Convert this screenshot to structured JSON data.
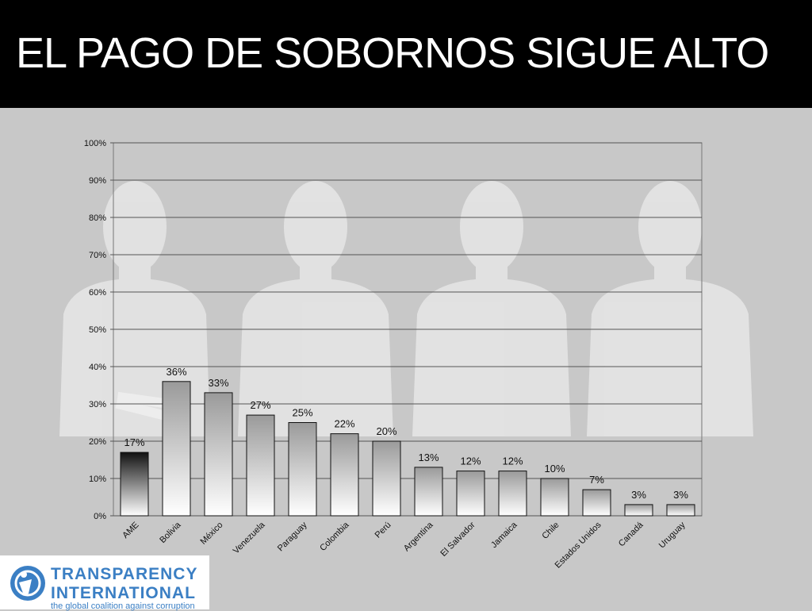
{
  "slide": {
    "title": "EL PAGO DE SOBORNOS SIGUE ALTO"
  },
  "logo": {
    "line1": "TRANSPARENCY",
    "line2": "INTERNATIONAL",
    "tagline": "the global coalition against corruption",
    "color": "#3b7fc4"
  },
  "chart_data": {
    "type": "bar",
    "title": "",
    "xlabel": "",
    "ylabel": "",
    "ylim": [
      0,
      100
    ],
    "yticks": [
      0,
      10,
      20,
      30,
      40,
      50,
      60,
      70,
      80,
      90,
      100
    ],
    "ytick_labels": [
      "0%",
      "10%",
      "20%",
      "30%",
      "40%",
      "50%",
      "60%",
      "70%",
      "80%",
      "90%",
      "100%"
    ],
    "grid": true,
    "categories": [
      "AME",
      "Bolivia",
      "México",
      "Venezuela",
      "Paraguay",
      "Colombia",
      "Perú",
      "Argentina",
      "El Salvador",
      "Jamaica",
      "Chile",
      "Estados Unidos",
      "Canadá",
      "Uruguay"
    ],
    "values": [
      17,
      36,
      33,
      27,
      25,
      22,
      20,
      13,
      12,
      12,
      10,
      7,
      3,
      3
    ],
    "data_labels": [
      "17%",
      "36%",
      "33%",
      "27%",
      "25%",
      "22%",
      "20%",
      "13%",
      "12%",
      "12%",
      "10%",
      "7%",
      "3%",
      "3%"
    ],
    "highlight_category": "AME",
    "colors": {
      "highlight": "#1a1a1a",
      "bar_top": "#9a9a9a",
      "bar_bottom": "#ffffff",
      "grid": "#555555"
    }
  }
}
